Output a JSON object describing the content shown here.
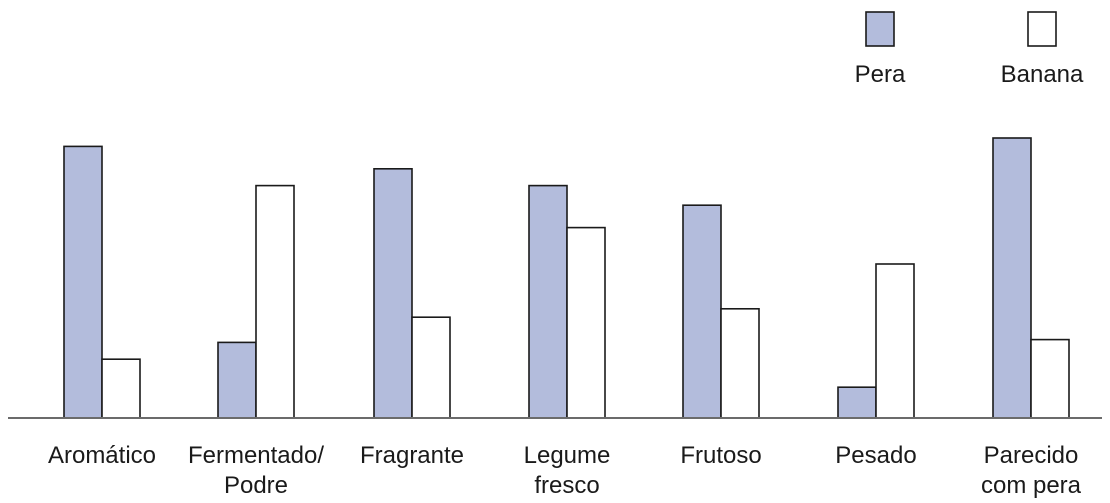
{
  "chart_data": {
    "type": "bar",
    "categories": [
      [
        "Aromático"
      ],
      [
        "Fermentado/",
        "Podre"
      ],
      [
        "Fragrante"
      ],
      [
        "Legume",
        "fresco"
      ],
      [
        "Frutoso"
      ],
      [
        "Pesado"
      ],
      [
        "Parecido",
        "com pera"
      ]
    ],
    "series": [
      {
        "name": "Pera",
        "color": "#b3bcdc",
        "values": [
          0.97,
          0.27,
          0.89,
          0.83,
          0.76,
          0.11,
          1.0
        ]
      },
      {
        "name": "Banana",
        "color": "#ffffff",
        "values": [
          0.21,
          0.83,
          0.36,
          0.68,
          0.39,
          0.55,
          0.28
        ]
      }
    ],
    "value_scale": "relative (0–1, no numeric axis shown)",
    "legend_placement": "top-right",
    "grid": false
  }
}
